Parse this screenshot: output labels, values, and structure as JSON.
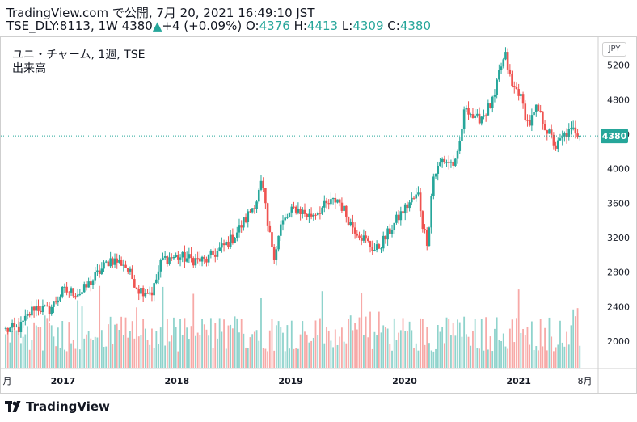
{
  "header": {
    "published": "TradingView.com で公開, 7月 20, 2021 16:49:10 JST",
    "symbol": "TSE_DLY:8113, 1W",
    "last": "4380",
    "up_arrow": "up-triangle-icon",
    "change": "+4 (+0.09%)",
    "o_label": "O:",
    "o": "4376",
    "h_label": "H:",
    "h": "4413",
    "l_label": "L:",
    "l": "4309",
    "c_label": "C:",
    "c": "4380"
  },
  "overlay": {
    "title": "ユニ・チャーム, 1週, TSE",
    "volume_label": "出来高",
    "currency": "JPY"
  },
  "footer": {
    "brand": "TradingView",
    "logo_icon": "tradingview-logo-icon"
  },
  "colors": {
    "up": "#26a69a",
    "down": "#ef5350",
    "vol_up": "#8fd3cc",
    "vol_down": "#f7a9a7"
  },
  "chart_data": {
    "type": "candlestick",
    "y_ticks": [
      5200,
      4800,
      4400,
      4000,
      3600,
      3200,
      2800,
      2400,
      2000
    ],
    "y_range": [
      1700,
      5450
    ],
    "x_ticks": [
      "月",
      "2017",
      "2018",
      "2019",
      "2020",
      "2021",
      "8月"
    ],
    "x_tick_dates": [
      "2016-07",
      "2017-01",
      "2018-01",
      "2019-01",
      "2020-01",
      "2021-01",
      "2021-08"
    ],
    "x_range": [
      "2016-07-01",
      "2021-08-05"
    ],
    "last_price": 4380,
    "last_price_label": "4380",
    "price_anchors": [
      [
        "2016-07-01",
        2130
      ],
      [
        "2016-08-15",
        2150
      ],
      [
        "2016-10-01",
        2400
      ],
      [
        "2016-11-15",
        2350
      ],
      [
        "2017-01-01",
        2580
      ],
      [
        "2017-03-01",
        2560
      ],
      [
        "2017-04-15",
        2750
      ],
      [
        "2017-06-01",
        2950
      ],
      [
        "2017-07-15",
        2900
      ],
      [
        "2017-09-01",
        2600
      ],
      [
        "2017-10-15",
        2570
      ],
      [
        "2017-11-15",
        2950
      ],
      [
        "2018-01-01",
        2980
      ],
      [
        "2018-02-15",
        2950
      ],
      [
        "2018-04-01",
        2930
      ],
      [
        "2018-05-15",
        3050
      ],
      [
        "2018-07-01",
        3200
      ],
      [
        "2018-08-15",
        3450
      ],
      [
        "2018-09-15",
        3650
      ],
      [
        "2018-10-01",
        3850
      ],
      [
        "2018-10-20",
        3300
      ],
      [
        "2018-11-10",
        3000
      ],
      [
        "2018-12-01",
        3350
      ],
      [
        "2019-01-15",
        3550
      ],
      [
        "2019-03-01",
        3450
      ],
      [
        "2019-04-15",
        3550
      ],
      [
        "2019-06-01",
        3650
      ],
      [
        "2019-07-15",
        3350
      ],
      [
        "2019-09-01",
        3150
      ],
      [
        "2019-10-01",
        3050
      ],
      [
        "2019-11-01",
        3200
      ],
      [
        "2019-12-15",
        3450
      ],
      [
        "2020-01-15",
        3600
      ],
      [
        "2020-02-15",
        3700
      ],
      [
        "2020-03-01",
        3300
      ],
      [
        "2020-03-15",
        3150
      ],
      [
        "2020-04-01",
        3900
      ],
      [
        "2020-05-01",
        4100
      ],
      [
        "2020-06-15",
        4050
      ],
      [
        "2020-07-15",
        4750
      ],
      [
        "2020-08-15",
        4550
      ],
      [
        "2020-09-15",
        4650
      ],
      [
        "2020-10-15",
        4800
      ],
      [
        "2020-11-01",
        5150
      ],
      [
        "2020-11-20",
        5300
      ],
      [
        "2020-12-10",
        4950
      ],
      [
        "2021-01-01",
        4900
      ],
      [
        "2021-02-01",
        4500
      ],
      [
        "2021-03-01",
        4700
      ],
      [
        "2021-04-01",
        4450
      ],
      [
        "2021-05-01",
        4250
      ],
      [
        "2021-06-01",
        4400
      ],
      [
        "2021-07-01",
        4450
      ],
      [
        "2021-07-20",
        4380
      ]
    ]
  }
}
